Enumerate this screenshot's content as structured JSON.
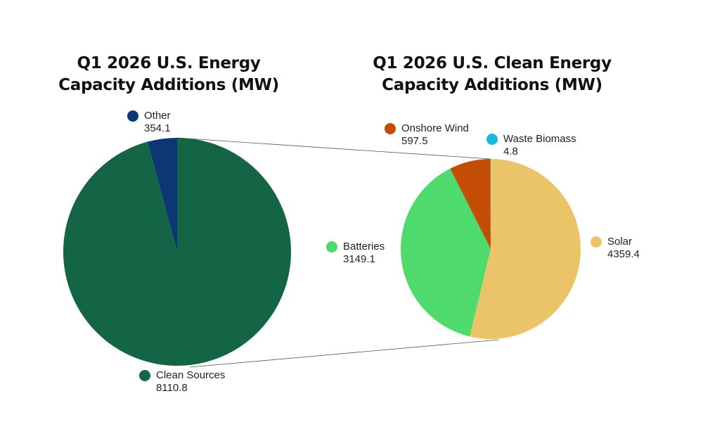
{
  "chart_data": [
    {
      "type": "pie",
      "title_lines": [
        "Q1 2026 U.S. Energy",
        "Capacity Additions (MW)"
      ],
      "slices": [
        {
          "name": "Clean Sources",
          "value": 8110.8,
          "color": "#136545"
        },
        {
          "name": "Other",
          "value": 354.1,
          "color": "#0b3774"
        }
      ]
    },
    {
      "type": "pie",
      "title_lines": [
        "Q1 2026 U.S. Clean Energy",
        "Capacity Additions (MW)"
      ],
      "slices": [
        {
          "name": "Solar",
          "value": 4359.4,
          "color": "#ebc46a"
        },
        {
          "name": "Batteries",
          "value": 3149.1,
          "color": "#4fda6e"
        },
        {
          "name": "Onshore Wind",
          "value": 597.5,
          "color": "#c44d06"
        },
        {
          "name": "Waste Biomass",
          "value": 4.8,
          "color": "#1ab8d9"
        }
      ]
    }
  ]
}
